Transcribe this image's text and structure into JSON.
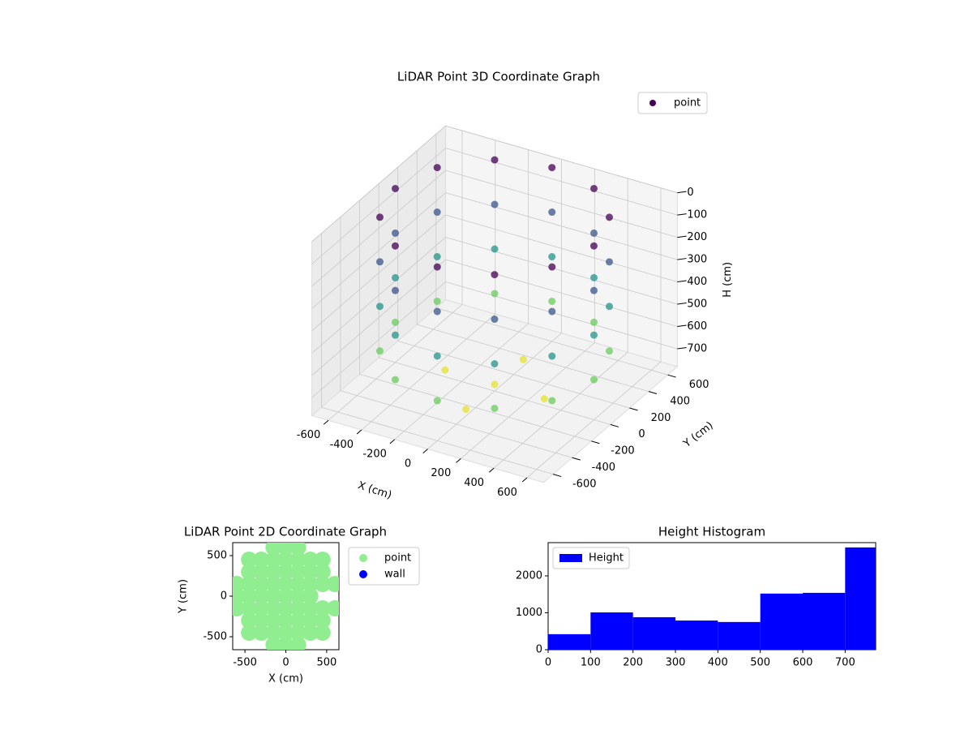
{
  "chart_data": [
    {
      "type": "scatter3d",
      "title": "LiDAR Point 3D Coordinate Graph",
      "xlabel": "X (cm)",
      "ylabel": "Y (cm)",
      "zlabel": "H (cm)",
      "xlim": [
        -700,
        700
      ],
      "ylim": [
        -700,
        700
      ],
      "zlim": [
        780,
        0
      ],
      "xticks": [
        -600,
        -400,
        -200,
        0,
        200,
        400,
        600
      ],
      "yticks": [
        -600,
        -400,
        -200,
        0,
        200,
        400,
        600
      ],
      "zticks": [
        0,
        100,
        200,
        300,
        400,
        500,
        600,
        700
      ],
      "colormap": "viridis",
      "legend": "upper right",
      "grid": true,
      "series": [
        {
          "name": "point",
          "color": "#440154",
          "x": [
            600,
            520,
            300,
            0,
            -300,
            -520,
            -600,
            -520,
            -300,
            0,
            300,
            520,
            600,
            520,
            300,
            0,
            -300,
            -520,
            -600,
            -520,
            -300,
            0,
            300,
            520,
            600,
            520,
            300,
            0,
            -300,
            -520,
            -600,
            -520,
            -300,
            0,
            300,
            520,
            600,
            520,
            300,
            0,
            -300,
            -520,
            -600,
            -520,
            -300,
            0,
            300,
            520,
            0,
            300,
            -300,
            0,
            0
          ],
          "y": [
            0,
            300,
            520,
            600,
            520,
            300,
            0,
            -300,
            -520,
            -600,
            -520,
            -300,
            0,
            300,
            520,
            600,
            520,
            300,
            0,
            -300,
            -520,
            -600,
            -520,
            -300,
            0,
            300,
            520,
            600,
            520,
            300,
            0,
            -300,
            -520,
            -600,
            -520,
            -300,
            0,
            300,
            520,
            600,
            520,
            300,
            0,
            -300,
            -520,
            -600,
            -520,
            -300,
            0,
            0,
            0,
            300,
            -300
          ],
          "z": [
            0,
            0,
            0,
            0,
            0,
            0,
            0,
            0,
            0,
            0,
            0,
            0,
            200,
            200,
            200,
            200,
            200,
            200,
            200,
            200,
            200,
            200,
            200,
            200,
            400,
            400,
            400,
            400,
            400,
            400,
            400,
            400,
            400,
            400,
            400,
            400,
            600,
            600,
            600,
            600,
            600,
            600,
            600,
            600,
            600,
            600,
            600,
            600,
            750,
            750,
            750,
            750,
            750
          ]
        }
      ]
    },
    {
      "type": "scatter",
      "title": "LiDAR Point 2D Coordinate Graph",
      "xlabel": "X (cm)",
      "ylabel": "Y (cm)",
      "xlim": [
        -650,
        650
      ],
      "ylim": [
        -660,
        660
      ],
      "xticks": [
        -500,
        0,
        500
      ],
      "yticks": [
        -500,
        0,
        500
      ],
      "legend": "outside right",
      "series": [
        {
          "name": "point",
          "color": "#90ee90",
          "x": [
            -150,
            0,
            150,
            -450,
            -300,
            -150,
            0,
            150,
            300,
            450,
            -450,
            -300,
            -150,
            0,
            150,
            300,
            450,
            -600,
            -450,
            -300,
            -150,
            0,
            150,
            300,
            450,
            600,
            -600,
            -450,
            -300,
            -150,
            0,
            150,
            300,
            -600,
            -450,
            -300,
            -150,
            0,
            150,
            300,
            450,
            600,
            -450,
            -300,
            -150,
            0,
            150,
            300,
            450,
            -450,
            -300,
            -150,
            0,
            150,
            300,
            450,
            -150,
            0,
            150
          ],
          "y": [
            600,
            600,
            600,
            450,
            450,
            450,
            450,
            450,
            450,
            450,
            300,
            300,
            300,
            300,
            300,
            300,
            300,
            150,
            150,
            150,
            150,
            150,
            150,
            150,
            150,
            150,
            0,
            0,
            0,
            0,
            0,
            0,
            0,
            -150,
            -150,
            -150,
            -150,
            -150,
            -150,
            -150,
            -150,
            -150,
            -300,
            -300,
            -300,
            -300,
            -300,
            -300,
            -300,
            -450,
            -450,
            -450,
            -450,
            -450,
            -450,
            -450,
            -600,
            -600,
            -600
          ]
        },
        {
          "name": "wall",
          "color": "#0000ff",
          "x": [],
          "y": []
        }
      ]
    },
    {
      "type": "histogram",
      "title": "Height Histogram",
      "name": "Height",
      "color": "#0000ff",
      "bins": [
        0,
        100,
        200,
        300,
        400,
        500,
        600,
        700,
        800
      ],
      "counts": [
        420,
        1010,
        880,
        790,
        750,
        1520,
        1540,
        2770
      ],
      "xlim": [
        0,
        772
      ],
      "ylim": [
        0,
        2900
      ],
      "xticks": [
        0,
        100,
        200,
        300,
        400,
        500,
        600,
        700
      ],
      "yticks": [
        0,
        1000,
        2000
      ],
      "legend": "upper left"
    }
  ]
}
